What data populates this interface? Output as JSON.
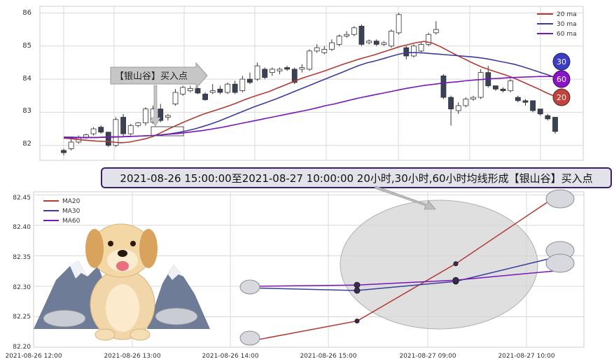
{
  "colors": {
    "ma20": "#b33a34",
    "ma30": "#3c3c9e",
    "ma60": "#7a16b8",
    "candle_dark": "#3a4258",
    "grid": "#d8d8d8",
    "banner_bg": "#e2e2ea",
    "banner_border": "#3b1f6b"
  },
  "banner": {
    "text": "2021-08-26 15:00:00至2021-08-27 10:00:00 20小时,30小时,60小时均线形成【银山谷】买入点"
  },
  "callout": {
    "text": "【银山谷】买入点"
  },
  "top_chart": {
    "legend": [
      "20 ma",
      "30 ma",
      "60 ma"
    ],
    "y_ticks": [
      "86",
      "85",
      "84",
      "83",
      "82"
    ],
    "badges": [
      "30",
      "60",
      "20"
    ]
  },
  "bottom_chart": {
    "legend": [
      "MA20",
      "MA30",
      "MA60"
    ],
    "y_ticks": [
      "82.45",
      "82.40",
      "82.35",
      "82.30",
      "82.25",
      "82.20"
    ],
    "x_ticks": [
      "2021-08-26 12:00",
      "2021-08-26 13:00",
      "2021-08-26 14:00",
      "2021-08-26 15:00",
      "2021-08-27 09:00",
      "2021-08-27 10:00"
    ]
  },
  "chart_data": [
    {
      "type": "candlestick",
      "ylim": [
        81.55,
        86.2
      ],
      "series_lines": [
        {
          "name": "20 ma",
          "values": [
            82.22,
            82.2,
            82.17,
            82.15,
            82.13,
            82.12,
            82.1,
            82.08,
            82.1,
            82.15,
            82.2,
            82.28,
            82.4,
            82.52,
            82.63,
            82.74,
            82.84,
            82.94,
            83.02,
            83.1,
            83.18,
            83.27,
            83.37,
            83.46,
            83.54,
            83.62,
            83.72,
            83.82,
            83.92,
            84.02,
            84.1,
            84.18,
            84.26,
            84.35,
            84.44,
            84.52,
            84.6,
            84.67,
            84.74,
            84.82,
            84.9,
            84.98,
            85.04,
            85.1,
            85.14,
            85.09,
            84.98,
            84.85,
            84.72,
            84.6,
            84.48,
            84.37,
            84.28,
            84.2,
            84.12,
            84.03,
            83.92,
            83.81,
            83.7,
            83.58,
            83.48
          ]
        },
        {
          "name": "30 ma",
          "values": [
            82.25,
            82.25,
            82.24,
            82.24,
            82.24,
            82.25,
            82.25,
            82.26,
            82.27,
            82.28,
            82.29,
            82.3,
            82.32,
            82.35,
            82.39,
            82.44,
            82.5,
            82.57,
            82.65,
            82.74,
            82.84,
            82.94,
            83.04,
            83.14,
            83.23,
            83.32,
            83.41,
            83.51,
            83.61,
            83.71,
            83.81,
            83.91,
            84.01,
            84.11,
            84.21,
            84.31,
            84.41,
            84.49,
            84.55,
            84.62,
            84.69,
            84.76,
            84.8,
            84.8,
            84.79,
            84.77,
            84.75,
            84.73,
            84.71,
            84.69,
            84.67,
            84.64,
            84.6,
            84.55,
            84.5,
            84.45,
            84.38,
            84.3,
            84.22,
            84.14,
            84.05
          ]
        },
        {
          "name": "60 ma",
          "values": [
            82.23,
            82.23,
            82.23,
            82.24,
            82.24,
            82.25,
            82.26,
            82.26,
            82.27,
            82.28,
            82.29,
            82.3,
            82.32,
            82.34,
            82.36,
            82.39,
            82.42,
            82.45,
            82.49,
            82.53,
            82.58,
            82.63,
            82.68,
            82.73,
            82.78,
            82.83,
            82.88,
            82.93,
            82.98,
            83.03,
            83.08,
            83.14,
            83.2,
            83.25,
            83.31,
            83.37,
            83.43,
            83.48,
            83.53,
            83.58,
            83.63,
            83.68,
            83.73,
            83.77,
            83.81,
            83.84,
            83.87,
            83.9,
            83.92,
            83.95,
            83.97,
            83.99,
            84.01,
            84.02,
            84.04,
            84.05,
            84.06,
            84.07,
            84.08,
            84.08,
            84.08
          ]
        }
      ],
      "candles": [
        {
          "o": 81.85,
          "h": 81.9,
          "l": 81.7,
          "c": 81.78
        },
        {
          "o": 81.9,
          "h": 82.25,
          "l": 81.85,
          "c": 82.1
        },
        {
          "o": 82.1,
          "h": 82.3,
          "l": 82.05,
          "c": 82.25
        },
        {
          "o": 82.25,
          "h": 82.35,
          "l": 82.2,
          "c": 82.32
        },
        {
          "o": 82.35,
          "h": 82.55,
          "l": 82.3,
          "c": 82.5
        },
        {
          "o": 82.55,
          "h": 82.6,
          "l": 82.35,
          "c": 82.4
        },
        {
          "o": 82.4,
          "h": 82.4,
          "l": 81.95,
          "c": 82.0
        },
        {
          "o": 82.0,
          "h": 82.85,
          "l": 81.95,
          "c": 82.78
        },
        {
          "o": 82.85,
          "h": 82.95,
          "l": 82.25,
          "c": 82.35
        },
        {
          "o": 82.35,
          "h": 82.65,
          "l": 82.3,
          "c": 82.6
        },
        {
          "o": 82.6,
          "h": 82.7,
          "l": 82.55,
          "c": 82.68
        },
        {
          "o": 82.68,
          "h": 83.15,
          "l": 82.6,
          "c": 83.1
        },
        {
          "o": 82.7,
          "h": 83.2,
          "l": 82.65,
          "c": 83.1
        },
        {
          "o": 83.1,
          "h": 83.25,
          "l": 82.7,
          "c": 82.75
        },
        {
          "o": 82.85,
          "h": 82.95,
          "l": 82.75,
          "c": 82.9
        },
        {
          "o": 83.25,
          "h": 83.7,
          "l": 83.2,
          "c": 83.6
        },
        {
          "o": 83.55,
          "h": 83.8,
          "l": 83.5,
          "c": 83.75
        },
        {
          "o": 83.65,
          "h": 83.8,
          "l": 83.6,
          "c": 83.72
        },
        {
          "o": 83.72,
          "h": 83.75,
          "l": 83.55,
          "c": 83.58
        },
        {
          "o": 83.55,
          "h": 83.6,
          "l": 83.35,
          "c": 83.38
        },
        {
          "o": 83.6,
          "h": 83.85,
          "l": 83.55,
          "c": 83.65
        },
        {
          "o": 83.7,
          "h": 83.8,
          "l": 83.55,
          "c": 83.6
        },
        {
          "o": 83.6,
          "h": 83.9,
          "l": 83.55,
          "c": 83.85
        },
        {
          "o": 83.85,
          "h": 83.95,
          "l": 83.55,
          "c": 83.6
        },
        {
          "o": 83.65,
          "h": 84.1,
          "l": 83.6,
          "c": 84.0
        },
        {
          "o": 84.0,
          "h": 84.2,
          "l": 83.85,
          "c": 83.9
        },
        {
          "o": 84.0,
          "h": 84.5,
          "l": 83.95,
          "c": 84.4
        },
        {
          "o": 84.3,
          "h": 84.35,
          "l": 84.0,
          "c": 84.05
        },
        {
          "o": 84.2,
          "h": 84.35,
          "l": 84.1,
          "c": 84.3
        },
        {
          "o": 84.25,
          "h": 84.35,
          "l": 84.15,
          "c": 84.3
        },
        {
          "o": 84.35,
          "h": 84.4,
          "l": 84.25,
          "c": 84.3
        },
        {
          "o": 84.3,
          "h": 84.35,
          "l": 83.85,
          "c": 83.9
        },
        {
          "o": 84.3,
          "h": 84.45,
          "l": 84.2,
          "c": 84.35
        },
        {
          "o": 84.3,
          "h": 84.9,
          "l": 84.25,
          "c": 84.85
        },
        {
          "o": 84.85,
          "h": 85.05,
          "l": 84.8,
          "c": 84.95
        },
        {
          "o": 84.8,
          "h": 85.0,
          "l": 84.75,
          "c": 84.9
        },
        {
          "o": 84.9,
          "h": 85.2,
          "l": 84.85,
          "c": 85.1
        },
        {
          "o": 85.05,
          "h": 85.35,
          "l": 85.0,
          "c": 85.3
        },
        {
          "o": 85.3,
          "h": 85.45,
          "l": 85.25,
          "c": 85.35
        },
        {
          "o": 85.35,
          "h": 85.6,
          "l": 85.3,
          "c": 85.55
        },
        {
          "o": 85.6,
          "h": 85.65,
          "l": 85.0,
          "c": 85.05
        },
        {
          "o": 85.1,
          "h": 85.2,
          "l": 85.05,
          "c": 85.15
        },
        {
          "o": 85.15,
          "h": 85.2,
          "l": 85.0,
          "c": 85.05
        },
        {
          "o": 85.05,
          "h": 85.15,
          "l": 85.0,
          "c": 85.1
        },
        {
          "o": 85.0,
          "h": 85.5,
          "l": 84.95,
          "c": 85.45
        },
        {
          "o": 85.4,
          "h": 86.0,
          "l": 85.35,
          "c": 85.95
        },
        {
          "o": 84.95,
          "h": 85.0,
          "l": 84.6,
          "c": 84.7
        },
        {
          "o": 84.7,
          "h": 85.05,
          "l": 84.65,
          "c": 85.0
        },
        {
          "o": 84.85,
          "h": 85.1,
          "l": 84.8,
          "c": 85.05
        },
        {
          "o": 85.05,
          "h": 85.4,
          "l": 85.0,
          "c": 85.35
        },
        {
          "o": 85.4,
          "h": 85.75,
          "l": 85.35,
          "c": 85.5
        },
        {
          "o": 84.1,
          "h": 84.15,
          "l": 83.4,
          "c": 83.45
        },
        {
          "o": 83.45,
          "h": 83.5,
          "l": 82.6,
          "c": 83.1
        },
        {
          "o": 83.05,
          "h": 83.3,
          "l": 82.95,
          "c": 83.2
        },
        {
          "o": 83.2,
          "h": 83.45,
          "l": 83.15,
          "c": 83.4
        },
        {
          "o": 83.4,
          "h": 83.5,
          "l": 83.35,
          "c": 83.45
        },
        {
          "o": 83.45,
          "h": 84.3,
          "l": 83.4,
          "c": 84.2
        },
        {
          "o": 84.2,
          "h": 84.4,
          "l": 83.75,
          "c": 83.8
        },
        {
          "o": 83.8,
          "h": 83.8,
          "l": 83.65,
          "c": 83.7
        },
        {
          "o": 83.7,
          "h": 83.75,
          "l": 83.6,
          "c": 83.65
        },
        {
          "o": 83.65,
          "h": 84.0,
          "l": 83.6,
          "c": 83.95
        },
        {
          "o": 83.45,
          "h": 83.5,
          "l": 83.3,
          "c": 83.35
        },
        {
          "o": 83.35,
          "h": 83.4,
          "l": 83.2,
          "c": 83.3
        },
        {
          "o": 83.35,
          "h": 83.35,
          "l": 83.0,
          "c": 83.05
        },
        {
          "o": 83.1,
          "h": 83.1,
          "l": 82.9,
          "c": 82.95
        },
        {
          "o": 82.9,
          "h": 82.95,
          "l": 82.75,
          "c": 82.8
        },
        {
          "o": 82.85,
          "h": 82.85,
          "l": 82.35,
          "c": 82.42
        }
      ]
    },
    {
      "type": "line",
      "x": [
        "2021-08-26 14:00",
        "2021-08-26 15:00",
        "2021-08-27 09:00",
        "2021-08-27 10:00"
      ],
      "ylim": [
        82.2,
        82.455
      ],
      "series": [
        {
          "name": "MA20",
          "values": [
            82.213,
            82.243,
            82.337,
            82.445
          ]
        },
        {
          "name": "MA30",
          "values": [
            82.297,
            82.293,
            82.308,
            82.347
          ]
        },
        {
          "name": "MA60",
          "values": [
            82.3,
            82.302,
            82.31,
            82.325
          ]
        }
      ]
    }
  ]
}
